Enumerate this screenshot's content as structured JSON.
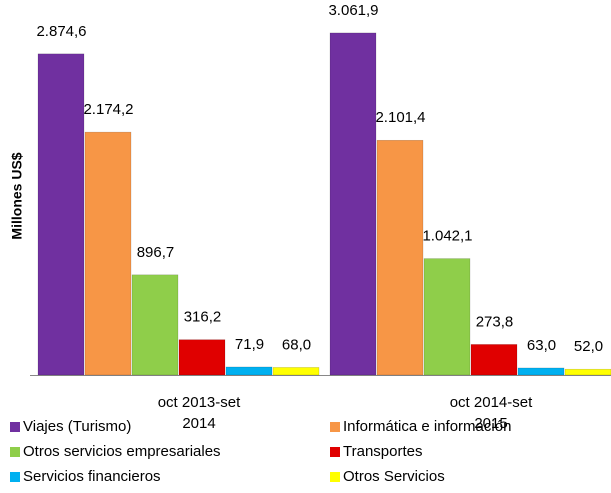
{
  "chart_data": {
    "type": "bar",
    "y_label": "Millones US$",
    "categories": [
      "oct 2013-set 2014",
      "oct 2014-set 2015"
    ],
    "ylim": [
      0,
      3200
    ],
    "series": [
      {
        "name": "Viajes (Turismo)",
        "color": "#7030a0",
        "values": [
          2874.6,
          3061.9
        ],
        "value_labels": [
          "2.874,6",
          "3.061,9"
        ]
      },
      {
        "name": "Informática e información",
        "color": "#f79646",
        "values": [
          2174.2,
          2101.4
        ],
        "value_labels": [
          "2.174,2",
          "2.101,4"
        ]
      },
      {
        "name": "Otros servicios empresariales",
        "color": "#8fce4a",
        "values": [
          896.7,
          1042.1
        ],
        "value_labels": [
          "896,7",
          "1.042,1"
        ]
      },
      {
        "name": "Transportes",
        "color": "#e00000",
        "values": [
          316.2,
          273.8
        ],
        "value_labels": [
          "316,2",
          "273,8"
        ]
      },
      {
        "name": "Servicios financieros",
        "color": "#00b0f0",
        "values": [
          71.9,
          63.0
        ],
        "value_labels": [
          "71,9",
          "63,0"
        ]
      },
      {
        "name": "Otros Servicios",
        "color": "#ffff00",
        "values": [
          68.0,
          52.0
        ],
        "value_labels": [
          "68,0",
          "52,0"
        ]
      }
    ]
  }
}
